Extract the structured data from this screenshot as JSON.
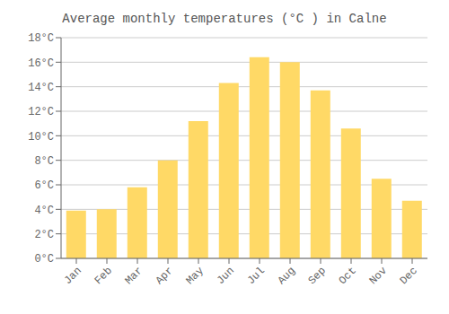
{
  "chart_data": {
    "type": "bar",
    "title": "Average monthly temperatures (°C ) in Calne",
    "categories": [
      "Jan",
      "Feb",
      "Mar",
      "Apr",
      "May",
      "Jun",
      "Jul",
      "Aug",
      "Sep",
      "Oct",
      "Nov",
      "Dec"
    ],
    "values": [
      3.9,
      4.0,
      5.8,
      8.0,
      11.2,
      14.3,
      16.4,
      16.0,
      13.7,
      10.6,
      6.5,
      4.7
    ],
    "color": "#FFD966",
    "ylim": [
      0,
      18
    ],
    "yticks": [
      {
        "value": 0,
        "label": "0°C"
      },
      {
        "value": 2,
        "label": "2°C"
      },
      {
        "value": 4,
        "label": "4°C"
      },
      {
        "value": 6,
        "label": "6°C"
      },
      {
        "value": 8,
        "label": "8°C"
      },
      {
        "value": 10,
        "label": "10°C"
      },
      {
        "value": 12,
        "label": "12°C"
      },
      {
        "value": 14,
        "label": "14°C"
      },
      {
        "value": 16,
        "label": "16°C"
      },
      {
        "value": 18,
        "label": "18°C"
      }
    ],
    "grid": true
  }
}
